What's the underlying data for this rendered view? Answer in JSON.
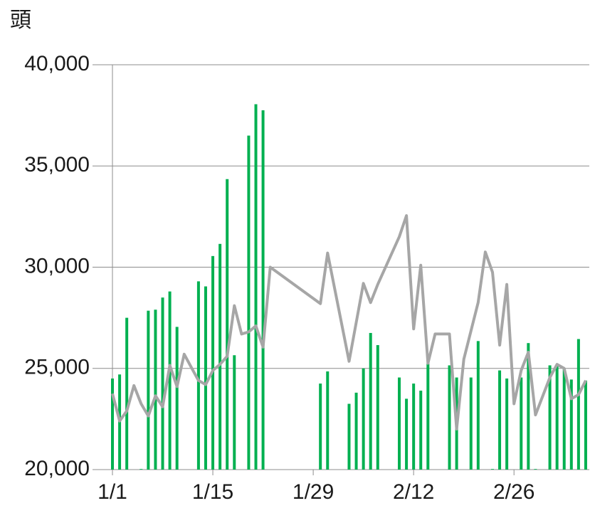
{
  "chart_data": {
    "type": "bar-line",
    "y_label": "頭",
    "ylim": [
      20000,
      40000
    ],
    "yticks": [
      {
        "value": 20000,
        "label": "20,000"
      },
      {
        "value": 25000,
        "label": "25,000"
      },
      {
        "value": 30000,
        "label": "30,000"
      },
      {
        "value": 35000,
        "label": "35,000"
      },
      {
        "value": 40000,
        "label": "40,000"
      }
    ],
    "xlim": [
      0,
      66.5
    ],
    "xticks": [
      {
        "value": 0,
        "label": "1/1"
      },
      {
        "value": 14,
        "label": "1/15"
      },
      {
        "value": 28,
        "label": "1/29"
      },
      {
        "value": 42,
        "label": "2/12"
      },
      {
        "value": 56,
        "label": "2/26"
      }
    ],
    "grid": true,
    "bars": {
      "color": "#00b050",
      "x": [
        0,
        1,
        2,
        4,
        5,
        6,
        7,
        8,
        9,
        12,
        13,
        14,
        15,
        16,
        17,
        19,
        20,
        21,
        29,
        30,
        33,
        34,
        35,
        36,
        37,
        40,
        41,
        42,
        43,
        44,
        47,
        48,
        50,
        51,
        53,
        54,
        55,
        57,
        58,
        59,
        61,
        62,
        63,
        64,
        65,
        66
      ],
      "values": [
        24500,
        24700,
        27500,
        20030,
        27850,
        27900,
        28500,
        28800,
        27050,
        29300,
        29050,
        30550,
        31150,
        34350,
        25650,
        36500,
        38050,
        37750,
        24250,
        24850,
        23250,
        23800,
        25000,
        26750,
        26150,
        24550,
        23500,
        24250,
        23900,
        25250,
        25150,
        24550,
        24550,
        26350,
        20030,
        24900,
        24500,
        24550,
        26250,
        20030,
        25150,
        25150,
        25000,
        24450,
        26450,
        24400
      ]
    },
    "line": {
      "color": "#a6a6a6",
      "x": [
        0,
        1,
        2,
        3,
        4,
        5,
        6,
        7,
        8,
        9,
        10,
        11,
        12,
        13,
        14,
        15,
        16,
        17,
        18,
        19,
        20,
        21,
        22,
        29,
        30,
        33,
        35,
        36,
        37,
        40,
        41,
        42,
        43,
        44,
        45,
        47,
        48,
        49,
        51,
        52,
        53,
        54,
        55,
        56,
        57,
        58,
        59,
        61,
        62,
        63,
        64,
        65,
        66
      ],
      "values": [
        23750,
        22400,
        22900,
        24150,
        23250,
        22650,
        23650,
        23100,
        25150,
        24100,
        25700,
        25050,
        24400,
        24200,
        24900,
        25200,
        25600,
        28100,
        26700,
        26800,
        27100,
        26050,
        30000,
        28200,
        30700,
        25350,
        29200,
        28250,
        29150,
        31500,
        32550,
        26950,
        30100,
        25250,
        26700,
        26700,
        22000,
        25450,
        28250,
        30750,
        29750,
        26150,
        29150,
        23250,
        24900,
        25800,
        22700,
        24550,
        25200,
        25000,
        23500,
        23700,
        24400
      ]
    }
  }
}
